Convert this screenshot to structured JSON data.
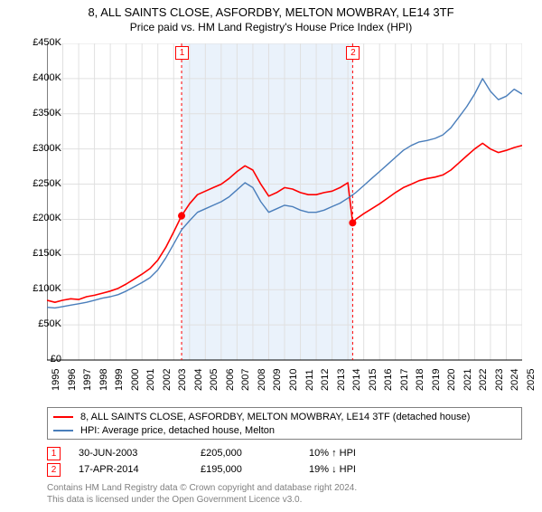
{
  "title_line1": "8, ALL SAINTS CLOSE, ASFORDBY, MELTON MOWBRAY, LE14 3TF",
  "title_line2": "Price paid vs. HM Land Registry's House Price Index (HPI)",
  "chart": {
    "type": "line",
    "plot_background_color": "#ffffff",
    "grid_color": "#e0e0e0",
    "axis_color": "#000000",
    "label_fontsize": 11,
    "y_axis": {
      "min": 0,
      "max": 450000,
      "tick_step": 50000,
      "ticks": [
        "£0",
        "£50K",
        "£100K",
        "£150K",
        "£200K",
        "£250K",
        "£300K",
        "£350K",
        "£400K",
        "£450K"
      ]
    },
    "x_axis": {
      "min": 1995,
      "max": 2025,
      "tick_step": 1,
      "ticks": [
        "1995",
        "1996",
        "1997",
        "1998",
        "1999",
        "2000",
        "2001",
        "2002",
        "2003",
        "2004",
        "2005",
        "2006",
        "2007",
        "2008",
        "2009",
        "2010",
        "2011",
        "2012",
        "2013",
        "2014",
        "2015",
        "2016",
        "2017",
        "2018",
        "2019",
        "2020",
        "2021",
        "2022",
        "2023",
        "2024",
        "2025"
      ]
    },
    "shaded_region": {
      "start": 2003.5,
      "end": 2014.3,
      "fill": "#eaf2fb"
    },
    "series": [
      {
        "name": "property",
        "color": "#ff0000",
        "line_width": 1.6,
        "points": [
          [
            1995.0,
            85000
          ],
          [
            1995.5,
            82000
          ],
          [
            1996.0,
            85000
          ],
          [
            1996.5,
            87000
          ],
          [
            1997.0,
            86000
          ],
          [
            1997.5,
            90000
          ],
          [
            1998.0,
            92000
          ],
          [
            1998.5,
            95000
          ],
          [
            1999.0,
            98000
          ],
          [
            1999.5,
            102000
          ],
          [
            2000.0,
            108000
          ],
          [
            2000.5,
            115000
          ],
          [
            2001.0,
            122000
          ],
          [
            2001.5,
            130000
          ],
          [
            2002.0,
            142000
          ],
          [
            2002.5,
            160000
          ],
          [
            2003.0,
            182000
          ],
          [
            2003.5,
            205000
          ],
          [
            2004.0,
            222000
          ],
          [
            2004.5,
            235000
          ],
          [
            2005.0,
            240000
          ],
          [
            2005.5,
            245000
          ],
          [
            2006.0,
            250000
          ],
          [
            2006.5,
            258000
          ],
          [
            2007.0,
            268000
          ],
          [
            2007.5,
            276000
          ],
          [
            2008.0,
            270000
          ],
          [
            2008.5,
            250000
          ],
          [
            2009.0,
            233000
          ],
          [
            2009.5,
            238000
          ],
          [
            2010.0,
            245000
          ],
          [
            2010.5,
            243000
          ],
          [
            2011.0,
            238000
          ],
          [
            2011.5,
            235000
          ],
          [
            2012.0,
            235000
          ],
          [
            2012.5,
            238000
          ],
          [
            2013.0,
            240000
          ],
          [
            2013.5,
            245000
          ],
          [
            2014.0,
            252000
          ],
          [
            2014.3,
            195000
          ],
          [
            2014.5,
            200000
          ],
          [
            2015.0,
            208000
          ],
          [
            2015.5,
            215000
          ],
          [
            2016.0,
            222000
          ],
          [
            2016.5,
            230000
          ],
          [
            2017.0,
            238000
          ],
          [
            2017.5,
            245000
          ],
          [
            2018.0,
            250000
          ],
          [
            2018.5,
            255000
          ],
          [
            2019.0,
            258000
          ],
          [
            2019.5,
            260000
          ],
          [
            2020.0,
            263000
          ],
          [
            2020.5,
            270000
          ],
          [
            2021.0,
            280000
          ],
          [
            2021.5,
            290000
          ],
          [
            2022.0,
            300000
          ],
          [
            2022.5,
            308000
          ],
          [
            2023.0,
            300000
          ],
          [
            2023.5,
            295000
          ],
          [
            2024.0,
            298000
          ],
          [
            2024.5,
            302000
          ],
          [
            2025.0,
            305000
          ]
        ]
      },
      {
        "name": "hpi",
        "color": "#4a7ebb",
        "line_width": 1.4,
        "points": [
          [
            1995.0,
            75000
          ],
          [
            1995.5,
            74000
          ],
          [
            1996.0,
            76000
          ],
          [
            1996.5,
            78000
          ],
          [
            1997.0,
            80000
          ],
          [
            1997.5,
            82000
          ],
          [
            1998.0,
            85000
          ],
          [
            1998.5,
            88000
          ],
          [
            1999.0,
            90000
          ],
          [
            1999.5,
            93000
          ],
          [
            2000.0,
            98000
          ],
          [
            2000.5,
            104000
          ],
          [
            2001.0,
            110000
          ],
          [
            2001.5,
            117000
          ],
          [
            2002.0,
            128000
          ],
          [
            2002.5,
            145000
          ],
          [
            2003.0,
            165000
          ],
          [
            2003.5,
            185000
          ],
          [
            2004.0,
            198000
          ],
          [
            2004.5,
            210000
          ],
          [
            2005.0,
            215000
          ],
          [
            2005.5,
            220000
          ],
          [
            2006.0,
            225000
          ],
          [
            2006.5,
            232000
          ],
          [
            2007.0,
            242000
          ],
          [
            2007.5,
            252000
          ],
          [
            2008.0,
            245000
          ],
          [
            2008.5,
            225000
          ],
          [
            2009.0,
            210000
          ],
          [
            2009.5,
            215000
          ],
          [
            2010.0,
            220000
          ],
          [
            2010.5,
            218000
          ],
          [
            2011.0,
            213000
          ],
          [
            2011.5,
            210000
          ],
          [
            2012.0,
            210000
          ],
          [
            2012.5,
            213000
          ],
          [
            2013.0,
            218000
          ],
          [
            2013.5,
            223000
          ],
          [
            2014.0,
            230000
          ],
          [
            2014.5,
            238000
          ],
          [
            2015.0,
            248000
          ],
          [
            2015.5,
            258000
          ],
          [
            2016.0,
            268000
          ],
          [
            2016.5,
            278000
          ],
          [
            2017.0,
            288000
          ],
          [
            2017.5,
            298000
          ],
          [
            2018.0,
            305000
          ],
          [
            2018.5,
            310000
          ],
          [
            2019.0,
            312000
          ],
          [
            2019.5,
            315000
          ],
          [
            2020.0,
            320000
          ],
          [
            2020.5,
            330000
          ],
          [
            2021.0,
            345000
          ],
          [
            2021.5,
            360000
          ],
          [
            2022.0,
            378000
          ],
          [
            2022.5,
            400000
          ],
          [
            2023.0,
            382000
          ],
          [
            2023.5,
            370000
          ],
          [
            2024.0,
            375000
          ],
          [
            2024.5,
            385000
          ],
          [
            2025.0,
            378000
          ]
        ]
      }
    ],
    "sale_markers": [
      {
        "label": "1",
        "x": 2003.5,
        "y": 205000
      },
      {
        "label": "2",
        "x": 2014.3,
        "y": 195000
      }
    ],
    "sale_line_color": "#ff0000"
  },
  "legend": {
    "border_color": "#808080",
    "items": [
      {
        "color": "#ff0000",
        "label": "8, ALL SAINTS CLOSE, ASFORDBY, MELTON MOWBRAY, LE14 3TF (detached house)"
      },
      {
        "color": "#4a7ebb",
        "label": "HPI: Average price, detached house, Melton"
      }
    ]
  },
  "sales_table": {
    "rows": [
      {
        "marker": "1",
        "date": "30-JUN-2003",
        "price": "£205,000",
        "delta": "10% ↑ HPI"
      },
      {
        "marker": "2",
        "date": "17-APR-2014",
        "price": "£195,000",
        "delta": "19% ↓ HPI"
      }
    ]
  },
  "credits": {
    "line1": "Contains HM Land Registry data © Crown copyright and database right 2024.",
    "line2": "This data is licensed under the Open Government Licence v3.0."
  }
}
